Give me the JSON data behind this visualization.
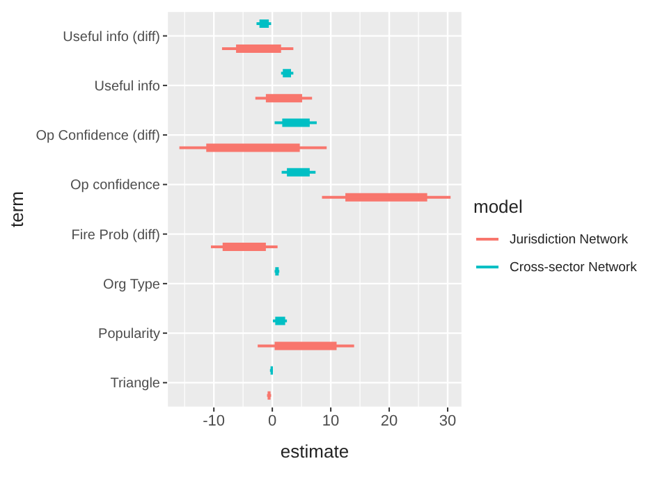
{
  "chart_data": {
    "type": "bar",
    "orientation": "horizontal",
    "xlabel": "estimate",
    "ylabel": "term",
    "legend_title": "model",
    "legend": "right",
    "grid": true,
    "categories": [
      "Useful info (diff)",
      "Useful info",
      "Op Confidence (diff)",
      "Op confidence",
      "Fire Prob (diff)",
      "Org Type",
      "Popularity",
      "Triangle"
    ],
    "xlim": [
      -18,
      32.5
    ],
    "xticks": [
      -10,
      0,
      10,
      20,
      30
    ],
    "series": [
      {
        "name": "Jurisdiction Network",
        "color": "#f8766d",
        "base": [
          -6.2,
          -1.1,
          -11.3,
          12.5,
          -8.5,
          null,
          0.4,
          -0.8
        ],
        "values": [
          7.7,
          6.2,
          16,
          14,
          7.4,
          null,
          10.6,
          0.5
        ],
        "errors": [
          [
            -8.6,
            3.6
          ],
          [
            -2.9,
            6.8
          ],
          [
            -15.9,
            9.3
          ],
          [
            8.5,
            30.5
          ],
          [
            -10.5,
            0.9
          ],
          null,
          [
            -2.5,
            14
          ],
          [
            -0.9,
            -0.2
          ]
        ]
      },
      {
        "name": "Cross-sector Network",
        "color": "#00bfc4",
        "base": [
          -2.2,
          1.8,
          1.7,
          2.5,
          null,
          0.5,
          0.5,
          -0.3
        ],
        "values": [
          1.6,
          1.4,
          4.7,
          3.9,
          null,
          0.6,
          1.7,
          0.4
        ],
        "errors": [
          [
            -2.7,
            -0.2
          ],
          [
            1.5,
            3.6
          ],
          [
            0.4,
            7.6
          ],
          [
            1.6,
            7.4
          ],
          null,
          [
            0.4,
            1.2
          ],
          [
            0.1,
            2.5
          ],
          [
            -0.4,
            0.1
          ]
        ]
      }
    ]
  }
}
